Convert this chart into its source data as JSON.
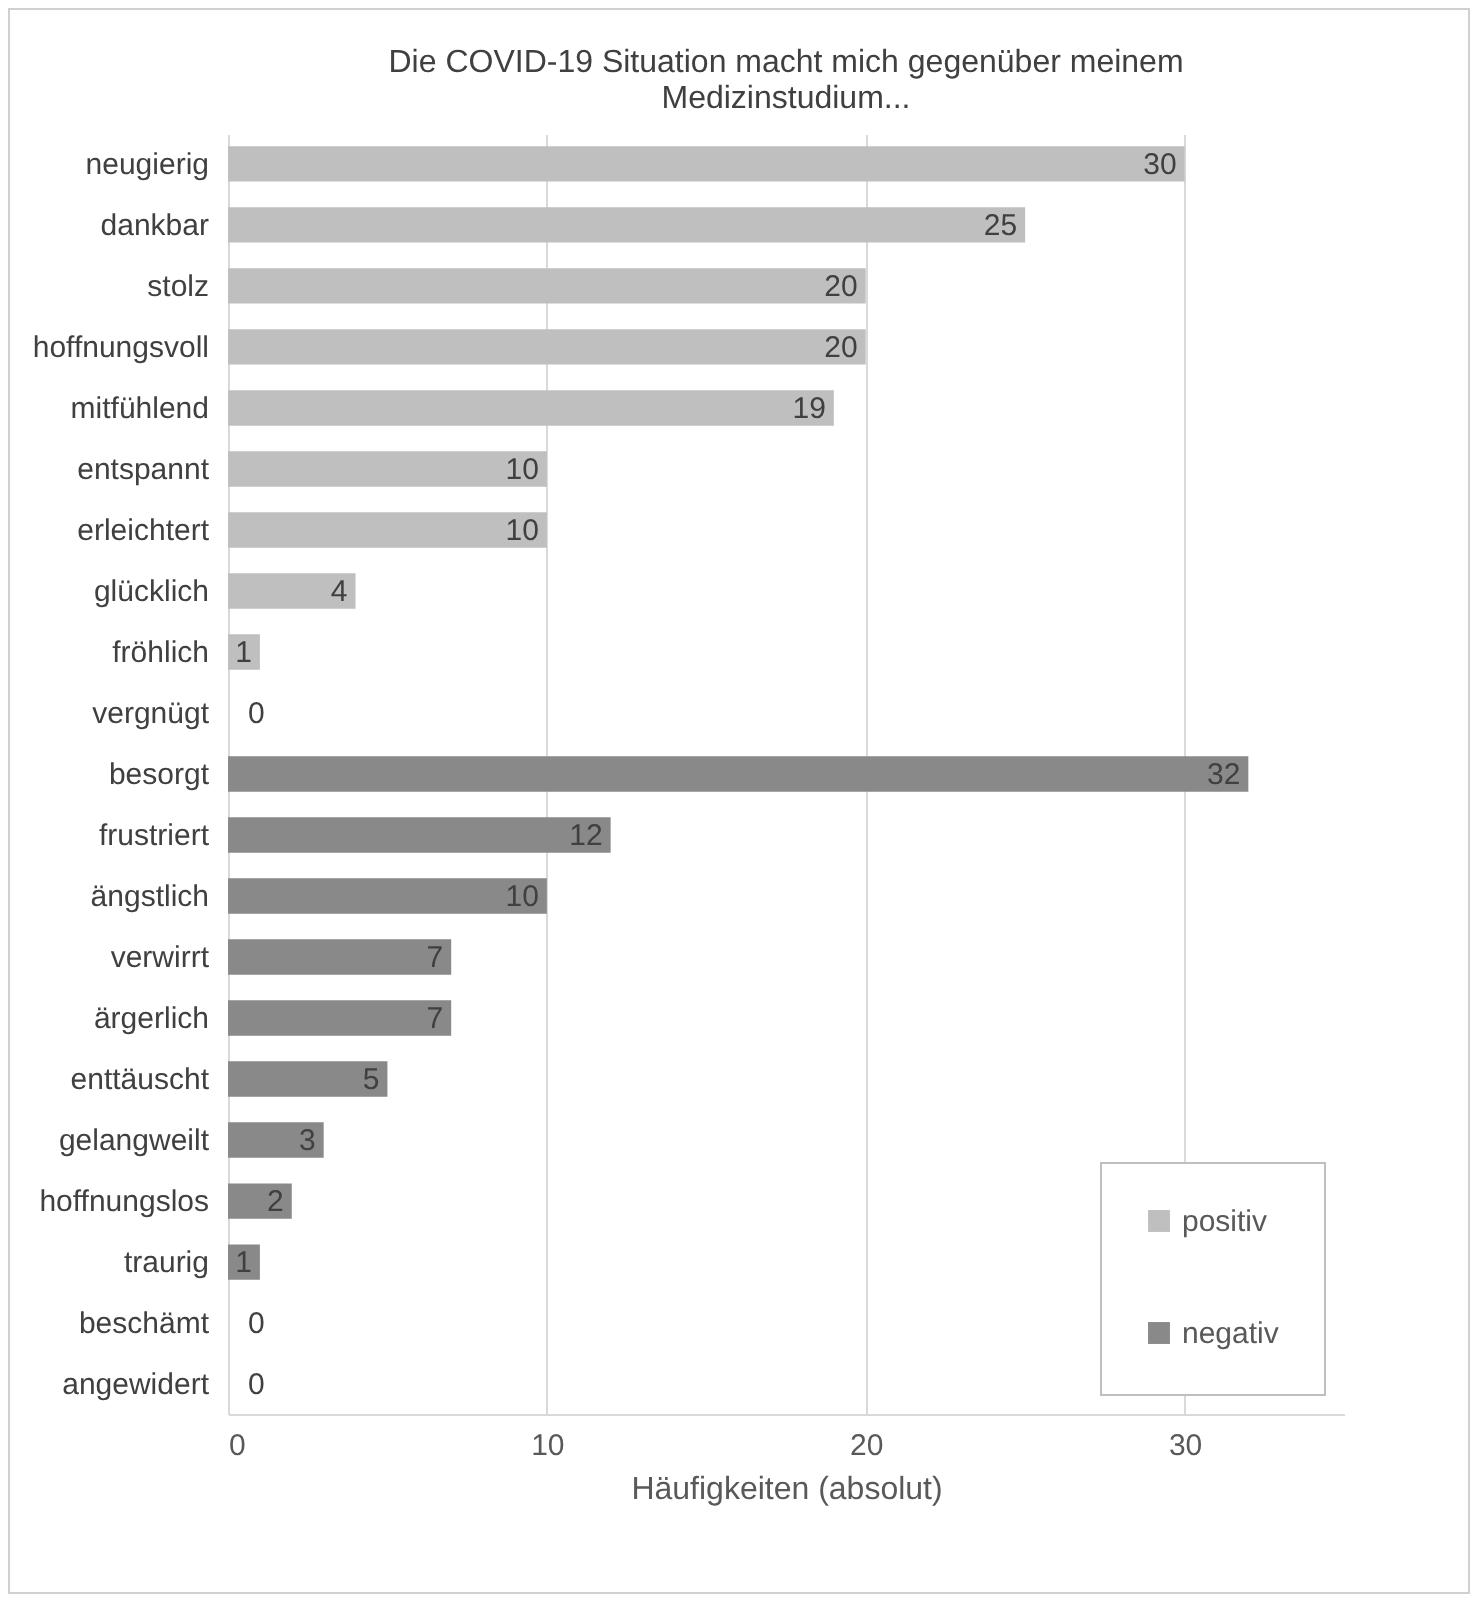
{
  "chart_data": {
    "type": "bar",
    "orientation": "horizontal",
    "title": "Die COVID-19 Situation macht mich gegenüber meinem Medizinstudium...",
    "xlabel": "Häufigkeiten (absolut)",
    "categories": [
      "neugierig",
      "dankbar",
      "stolz",
      "hoffnungsvoll",
      "mitfühlend",
      "entspannt",
      "erleichtert",
      "glücklich",
      "fröhlich",
      "vergnügt",
      "besorgt",
      "frustriert",
      "ängstlich",
      "verwirrt",
      "ärgerlich",
      "enttäuscht",
      "gelangweilt",
      "hoffnungslos",
      "traurig",
      "beschämt",
      "angewidert"
    ],
    "series": [
      {
        "name": "positiv",
        "color": "#bfbfbf",
        "values": [
          30,
          25,
          20,
          20,
          19,
          10,
          10,
          4,
          1,
          0,
          null,
          null,
          null,
          null,
          null,
          null,
          null,
          null,
          null,
          null,
          null
        ]
      },
      {
        "name": "negativ",
        "color": "#898989",
        "values": [
          null,
          null,
          null,
          null,
          null,
          null,
          null,
          null,
          null,
          null,
          32,
          12,
          10,
          7,
          7,
          5,
          3,
          2,
          1,
          0,
          0
        ]
      }
    ],
    "xlim": [
      0,
      35
    ],
    "xticks": [
      0,
      10,
      20,
      30
    ],
    "grid": "x",
    "legend": "bottom right",
    "data_labels": true
  }
}
